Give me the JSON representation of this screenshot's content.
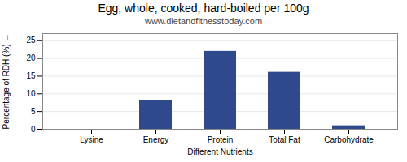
{
  "chart_data": {
    "type": "bar",
    "title": "Egg, whole, cooked, hard-boiled per 100g",
    "subtitle": "www.dietandfitnesstoday.com",
    "xlabel": "Different Nutrients",
    "ylabel": "Percentage of RDH (%)",
    "categories": [
      "Lysine",
      "Energy",
      "Protein",
      "Total Fat",
      "Carbohydrate"
    ],
    "values": [
      0.0,
      8.1,
      22.0,
      16.1,
      1.0
    ],
    "color": "#2e4a8c",
    "ylim": [
      0,
      27
    ],
    "yticks": [
      0,
      5,
      10,
      15,
      20,
      25
    ],
    "grid": true
  }
}
